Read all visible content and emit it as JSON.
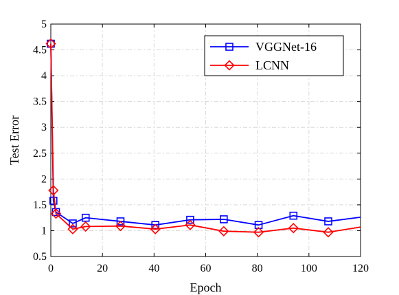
{
  "chart_data": {
    "type": "line",
    "title": "",
    "xlabel": "Epoch",
    "ylabel": "Test Error",
    "xlim": [
      0,
      120
    ],
    "ylim": [
      0.5,
      5
    ],
    "xticks": [
      0,
      20,
      40,
      60,
      80,
      100,
      120
    ],
    "xtick_labels": [
      "0",
      "20",
      "40",
      "60",
      "80",
      "100",
      "120"
    ],
    "yticks": [
      0.5,
      1,
      1.5,
      2,
      2.5,
      3,
      3.5,
      4,
      4.5,
      5
    ],
    "ytick_labels": [
      "0.5",
      "1",
      "1.5",
      "2",
      "2.5",
      "3",
      "3.5",
      "4",
      "4.5",
      "5"
    ],
    "grid": true,
    "legend_position": "top-right",
    "series": [
      {
        "name": "VGGNet-16",
        "color": "#0000ff",
        "marker": "square",
        "x": [
          0,
          1,
          2,
          8.5,
          13.5,
          27,
          40.5,
          54,
          67,
          80.5,
          94,
          107.5,
          120
        ],
        "y": [
          4.62,
          1.58,
          1.36,
          1.14,
          1.25,
          1.18,
          1.11,
          1.21,
          1.22,
          1.11,
          1.29,
          1.18,
          1.26
        ],
        "markers": [
          true,
          true,
          true,
          true,
          true,
          true,
          true,
          true,
          true,
          true,
          true,
          true,
          false
        ]
      },
      {
        "name": "LCNN",
        "color": "#ff0000",
        "marker": "diamond",
        "x": [
          0,
          1,
          2,
          8.5,
          13.5,
          27,
          40.5,
          54,
          67,
          80.5,
          94,
          107.5,
          120
        ],
        "y": [
          4.62,
          1.78,
          1.33,
          1.03,
          1.08,
          1.09,
          1.03,
          1.11,
          0.99,
          0.97,
          1.05,
          0.97,
          1.07
        ],
        "markers": [
          true,
          true,
          true,
          true,
          true,
          true,
          true,
          true,
          true,
          true,
          true,
          true,
          false
        ]
      }
    ]
  }
}
